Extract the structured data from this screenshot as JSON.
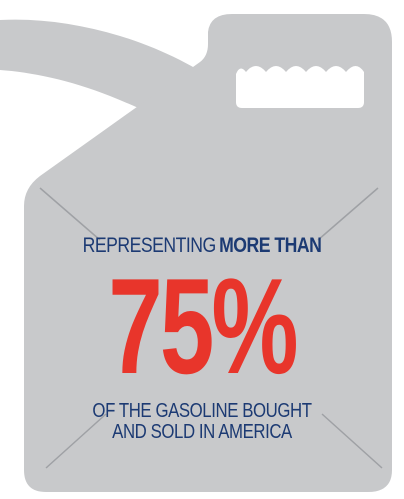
{
  "graphic": {
    "icon": "gas-can-icon",
    "colors": {
      "can_fill": "#c8c9cb",
      "accent_red": "#e8352b",
      "text_navy": "#1c3a73",
      "cross_lines": "#9fa1a5"
    }
  },
  "headline": {
    "lead": "REPRESENTING",
    "emphasis": "MORE THAN"
  },
  "stat": {
    "value": "75%"
  },
  "caption": {
    "line1": "OF THE GASOLINE BOUGHT",
    "line2": "AND SOLD IN AMERICA"
  }
}
